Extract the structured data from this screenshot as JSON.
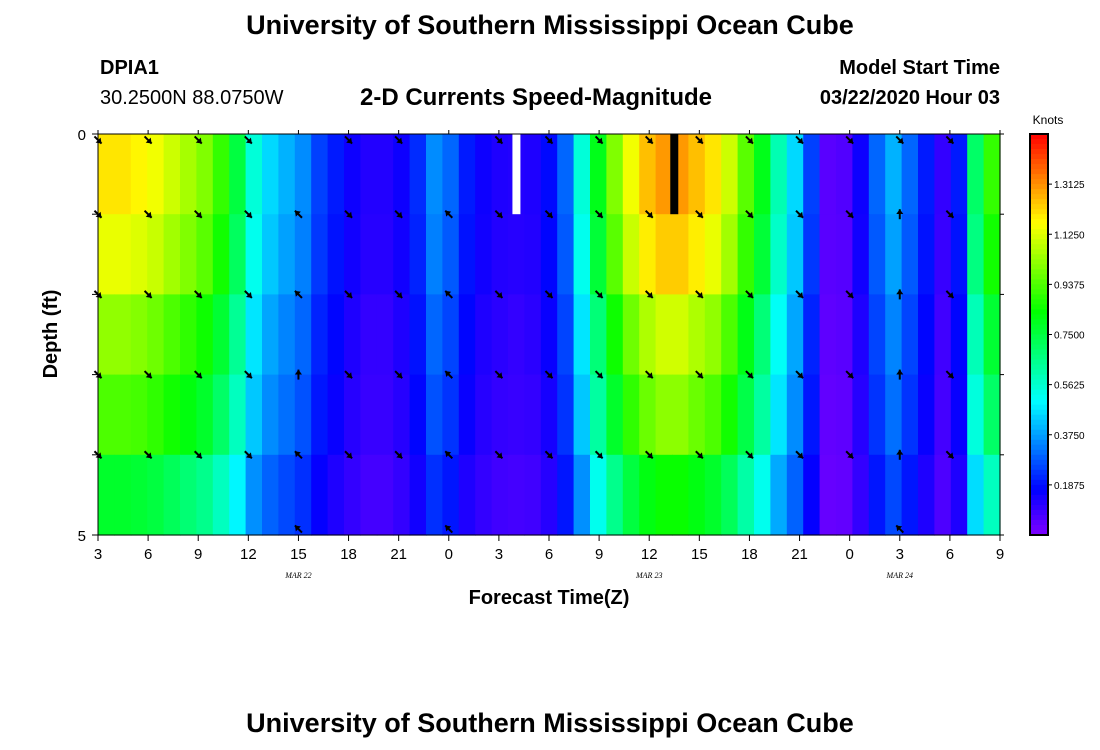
{
  "header": {
    "title": "University of Southern Mississippi Ocean Cube",
    "station": "DPIA1",
    "coords": "30.2500N 88.0750W",
    "subtitle": "2-D Currents Speed-Magnitude",
    "model_start_label": "Model Start Time",
    "model_start_value": "03/22/2020 Hour 03"
  },
  "footer": {
    "title": "University of Southern Mississippi Ocean Cube"
  },
  "chart_data": {
    "type": "heatmap",
    "title": "2-D Currents Speed-Magnitude",
    "xlabel": "Forecast Time(Z)",
    "ylabel": "Depth (ft)",
    "ylim": [
      0,
      5
    ],
    "y_tick_labels": [
      "0",
      "5"
    ],
    "x_tick_labels": [
      "3",
      "6",
      "9",
      "12",
      "15",
      "18",
      "21",
      "0",
      "3",
      "6",
      "9",
      "12",
      "15",
      "18",
      "21",
      "0",
      "3",
      "6",
      "9"
    ],
    "x_date_labels": [
      {
        "label": "MAR 22",
        "tick_index": 4
      },
      {
        "label": "MAR 23",
        "tick_index": 11
      },
      {
        "label": "MAR 24",
        "tick_index": 16
      }
    ],
    "depth_rows": 5,
    "time_columns": 55,
    "speed_profile_surface": [
      1.2,
      1.2,
      1.18,
      1.15,
      1.1,
      1.05,
      1.0,
      0.9,
      0.75,
      0.55,
      0.45,
      0.4,
      0.35,
      0.25,
      0.2,
      0.15,
      0.12,
      0.12,
      0.15,
      0.22,
      0.35,
      0.3,
      0.2,
      0.15,
      0.13,
      0.12,
      0.13,
      0.18,
      0.3,
      0.55,
      0.8,
      1.0,
      1.15,
      1.25,
      1.3,
      1.3,
      1.25,
      1.2,
      1.1,
      0.95,
      0.8,
      0.6,
      0.45,
      0.25,
      0.05,
      0.06,
      0.15,
      0.3,
      0.4,
      0.3,
      0.2,
      0.1,
      0.2,
      0.7,
      0.9
    ],
    "depth_factors": [
      1.0,
      0.95,
      0.85,
      0.78,
      0.65
    ],
    "arrows": {
      "rows": [
        {
          "cols": [
            0,
            1,
            2,
            3,
            5,
            6,
            8,
            9,
            10,
            11,
            12,
            13,
            14,
            15,
            16,
            17
          ],
          "dirs": [
            "SE",
            "SE",
            "SE",
            "SE",
            "SE",
            "SE",
            "SE",
            "SE",
            "SE",
            "SE",
            "SE",
            "SE",
            "SE",
            "SE",
            "SE",
            "SE"
          ]
        },
        {
          "cols": [
            0,
            1,
            2,
            3,
            4,
            5,
            6,
            7,
            8,
            9,
            10,
            11,
            12,
            13,
            14,
            15,
            16,
            17
          ],
          "dirs": [
            "SE",
            "SE",
            "SE",
            "SE",
            "NW",
            "SE",
            "SE",
            "NW",
            "SE",
            "SE",
            "SE",
            "SE",
            "SE",
            "SE",
            "SE",
            "SE",
            "N",
            "SE"
          ]
        },
        {
          "cols": [
            0,
            1,
            2,
            3,
            4,
            5,
            6,
            7,
            8,
            9,
            10,
            11,
            12,
            13,
            14,
            15,
            16,
            17
          ],
          "dirs": [
            "SE",
            "SE",
            "SE",
            "SE",
            "NW",
            "SE",
            "SE",
            "NW",
            "SE",
            "SE",
            "SE",
            "SE",
            "SE",
            "SE",
            "SE",
            "SE",
            "N",
            "SE"
          ]
        },
        {
          "cols": [
            0,
            1,
            2,
            3,
            4,
            5,
            6,
            7,
            8,
            9,
            10,
            11,
            12,
            13,
            14,
            15,
            16,
            17
          ],
          "dirs": [
            "SE",
            "SE",
            "SE",
            "SE",
            "N",
            "SE",
            "SE",
            "NW",
            "SE",
            "SE",
            "SE",
            "SE",
            "SE",
            "SE",
            "SE",
            "SE",
            "N",
            "SE"
          ]
        },
        {
          "cols": [
            0,
            1,
            2,
            3,
            4,
            5,
            6,
            7,
            8,
            9,
            10,
            11,
            12,
            13,
            14,
            15,
            16,
            17
          ],
          "dirs": [
            "SE",
            "SE",
            "SE",
            "SE",
            "NW",
            "SE",
            "SE",
            "NW",
            "SE",
            "SE",
            "SE",
            "SE",
            "SE",
            "SE",
            "SE",
            "SE",
            "N",
            "SE"
          ]
        },
        {
          "cols": [
            4,
            7,
            16
          ],
          "dirs": [
            "NW",
            "NW",
            "NW"
          ]
        }
      ]
    },
    "markers": [
      {
        "color": "#ffffff",
        "tick_position": 8.35
      },
      {
        "color": "#000000",
        "tick_position": 11.5
      }
    ],
    "colorbar": {
      "unit": "Knots",
      "ticks": [
        "1.3125",
        "1.1250",
        "0.9375",
        "0.7500",
        "0.5625",
        "0.3750",
        "0.1875"
      ],
      "range": [
        0,
        1.5
      ]
    }
  }
}
